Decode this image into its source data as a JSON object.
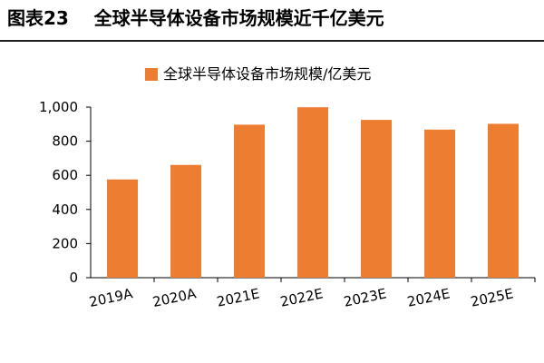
{
  "figure": {
    "title": "图表23    全球半导体设备市场规模近千亿美元"
  },
  "colors": {
    "bar": "#ED7D31",
    "axis": "#000000",
    "text": "#000000",
    "rule": "#1f1f1f"
  },
  "chart_data": {
    "type": "bar",
    "categories": [
      "2019A",
      "2020A",
      "2021E",
      "2022E",
      "2023E",
      "2024E",
      "2025E"
    ],
    "series": [
      {
        "name": "全球半导体设备市场规模/亿美元",
        "values": [
          576,
          661,
          897,
          999,
          925,
          868,
          902
        ]
      }
    ],
    "yticks": [
      "0",
      "200",
      "400",
      "600",
      "800",
      "1,000"
    ],
    "ylim": [
      0,
      1000
    ],
    "grid": false,
    "legend": "top-center"
  }
}
